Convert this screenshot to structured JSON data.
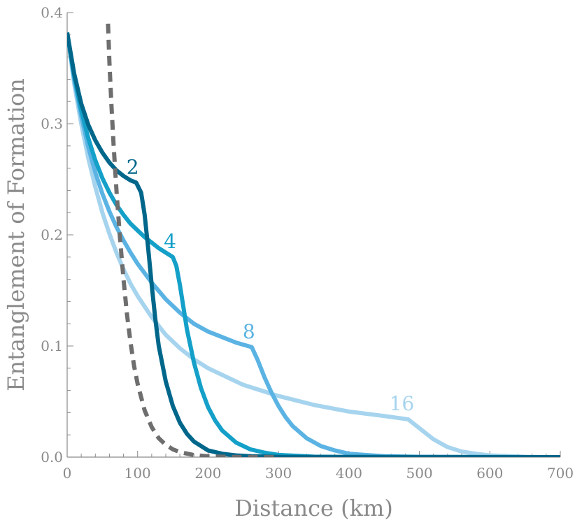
{
  "chart_data": {
    "type": "line",
    "xlabel": "Distance (km)",
    "ylabel": "Entanglement of Formation",
    "xlim": [
      0,
      700
    ],
    "ylim": [
      0,
      0.4
    ],
    "x_ticks": [
      "0",
      "100",
      "200",
      "300",
      "400",
      "500",
      "600",
      "700"
    ],
    "y_ticks": [
      "0.0",
      "0.1",
      "0.2",
      "0.3",
      "0.4"
    ],
    "grid": false,
    "legend": "none (inline series labels)",
    "series": [
      {
        "name": "2",
        "color": "#00678b",
        "style": "solid",
        "x": [
          0,
          10,
          20,
          30,
          40,
          50,
          60,
          70,
          80,
          90,
          98,
          105,
          110,
          115,
          120,
          125,
          130,
          140,
          150,
          160,
          170,
          180,
          200,
          220,
          240,
          260,
          300,
          700
        ],
        "y": [
          0.382,
          0.345,
          0.318,
          0.299,
          0.285,
          0.274,
          0.265,
          0.258,
          0.253,
          0.249,
          0.247,
          0.238,
          0.218,
          0.188,
          0.155,
          0.125,
          0.1,
          0.068,
          0.046,
          0.031,
          0.021,
          0.014,
          0.006,
          0.003,
          0.0015,
          0.0008,
          0.0002,
          0.0
        ]
      },
      {
        "name": "4",
        "color": "#14a0c8",
        "style": "solid",
        "x": [
          0,
          10,
          20,
          30,
          40,
          50,
          60,
          70,
          80,
          90,
          100,
          110,
          120,
          130,
          140,
          150,
          155,
          160,
          165,
          170,
          180,
          190,
          200,
          210,
          220,
          240,
          260,
          280,
          300,
          350,
          400,
          700
        ],
        "y": [
          0.382,
          0.343,
          0.312,
          0.287,
          0.267,
          0.251,
          0.238,
          0.227,
          0.218,
          0.21,
          0.204,
          0.198,
          0.193,
          0.188,
          0.184,
          0.18,
          0.172,
          0.155,
          0.135,
          0.115,
          0.085,
          0.062,
          0.045,
          0.033,
          0.024,
          0.013,
          0.007,
          0.004,
          0.002,
          0.0004,
          0.0001,
          0.0
        ]
      },
      {
        "name": "8",
        "color": "#5bb3e3",
        "style": "solid",
        "x": [
          0,
          10,
          20,
          30,
          40,
          50,
          60,
          70,
          80,
          90,
          100,
          120,
          140,
          160,
          180,
          200,
          220,
          240,
          262,
          270,
          280,
          290,
          300,
          310,
          320,
          340,
          360,
          380,
          400,
          450,
          500,
          700
        ],
        "y": [
          0.382,
          0.34,
          0.307,
          0.279,
          0.256,
          0.237,
          0.221,
          0.207,
          0.195,
          0.184,
          0.174,
          0.157,
          0.142,
          0.13,
          0.12,
          0.113,
          0.108,
          0.103,
          0.099,
          0.088,
          0.072,
          0.058,
          0.046,
          0.036,
          0.028,
          0.017,
          0.01,
          0.006,
          0.003,
          0.0008,
          0.0002,
          0.0
        ]
      },
      {
        "name": "16",
        "color": "#a6d4ee",
        "style": "solid",
        "x": [
          0,
          10,
          20,
          30,
          40,
          50,
          60,
          70,
          80,
          90,
          100,
          120,
          140,
          160,
          180,
          200,
          250,
          300,
          350,
          400,
          450,
          484,
          500,
          520,
          540,
          560,
          580,
          600,
          650,
          700
        ],
        "y": [
          0.382,
          0.336,
          0.3,
          0.269,
          0.243,
          0.22,
          0.201,
          0.184,
          0.169,
          0.156,
          0.145,
          0.126,
          0.11,
          0.098,
          0.088,
          0.08,
          0.065,
          0.055,
          0.047,
          0.041,
          0.037,
          0.034,
          0.026,
          0.016,
          0.009,
          0.005,
          0.003,
          0.0015,
          0.0003,
          0.0
        ]
      },
      {
        "name": "",
        "color": "#6e6e6e",
        "style": "dashed",
        "x": [
          58,
          60,
          63,
          66,
          70,
          75,
          80,
          85,
          90,
          95,
          100,
          110,
          120,
          130,
          140,
          150,
          160,
          180,
          200,
          230,
          300
        ],
        "y": [
          0.39,
          0.355,
          0.315,
          0.28,
          0.24,
          0.197,
          0.16,
          0.128,
          0.103,
          0.082,
          0.066,
          0.042,
          0.027,
          0.017,
          0.011,
          0.007,
          0.0045,
          0.0018,
          0.0007,
          0.0002,
          0.0
        ]
      }
    ],
    "annotations": [
      {
        "text": "2",
        "x": 93,
        "y": 0.255,
        "color": "#00678b"
      },
      {
        "text": "4",
        "x": 146,
        "y": 0.188,
        "color": "#14a0c8"
      },
      {
        "text": "8",
        "x": 258,
        "y": 0.107,
        "color": "#5bb3e3"
      },
      {
        "text": "16",
        "x": 475,
        "y": 0.042,
        "color": "#a6d4ee"
      }
    ],
    "axis_color": "#8a8a8a"
  }
}
